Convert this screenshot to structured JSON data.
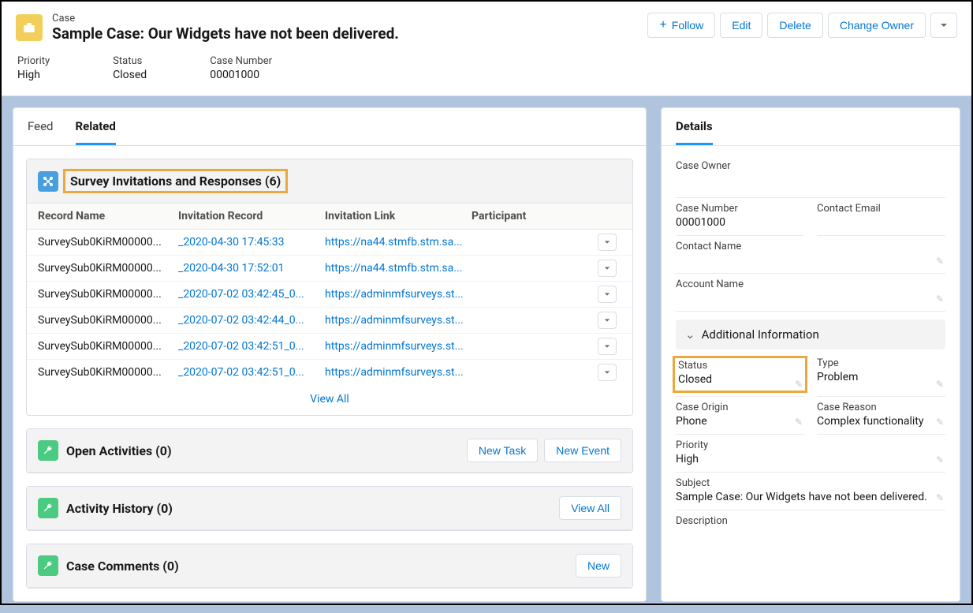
{
  "header": {
    "object_label": "Case",
    "title": "Sample Case: Our Widgets have not been delivered.",
    "actions": {
      "follow": "Follow",
      "edit": "Edit",
      "delete": "Delete",
      "change_owner": "Change Owner"
    },
    "highlights": [
      {
        "label": "Priority",
        "value": "High"
      },
      {
        "label": "Status",
        "value": "Closed"
      },
      {
        "label": "Case Number",
        "value": "00001000"
      }
    ]
  },
  "tabs": {
    "feed": "Feed",
    "related": "Related"
  },
  "survey_list": {
    "title": "Survey Invitations and Responses (6)",
    "columns": {
      "record": "Record Name",
      "invitation": "Invitation Record",
      "link": "Invitation Link",
      "participant": "Participant"
    },
    "rows": [
      {
        "record": "SurveySub0KiRM00000...",
        "invitation": "_2020-04-30 17:45:33",
        "link": "https://na44.stmfb.stm.sa..."
      },
      {
        "record": "SurveySub0KiRM00000...",
        "invitation": "_2020-04-30 17:52:01",
        "link": "https://na44.stmfb.stm.sa..."
      },
      {
        "record": "SurveySub0KiRM00000...",
        "invitation": "_2020-07-02 03:42:45_0...",
        "link": "https://adminmfsurveys.st..."
      },
      {
        "record": "SurveySub0KiRM00000...",
        "invitation": "_2020-07-02 03:42:44_0...",
        "link": "https://adminmfsurveys.st..."
      },
      {
        "record": "SurveySub0KiRM00000...",
        "invitation": "_2020-07-02 03:42:51_0...",
        "link": "https://adminmfsurveys.st..."
      },
      {
        "record": "SurveySub0KiRM00000...",
        "invitation": "_2020-07-02 03:42:51_0...",
        "link": "https://adminmfsurveys.st..."
      }
    ],
    "view_all": "View All"
  },
  "open_activities": {
    "title": "Open Activities (0)",
    "new_task": "New Task",
    "new_event": "New Event"
  },
  "activity_history": {
    "title": "Activity History (0)",
    "view_all": "View All"
  },
  "case_comments": {
    "title": "Case Comments (0)",
    "new": "New"
  },
  "details": {
    "tab": "Details",
    "case_owner_label": "Case Owner",
    "case_number_label": "Case Number",
    "case_number_value": "00001000",
    "contact_email_label": "Contact Email",
    "contact_name_label": "Contact Name",
    "account_name_label": "Account Name",
    "section": "Additional Information",
    "status_label": "Status",
    "status_value": "Closed",
    "type_label": "Type",
    "type_value": "Problem",
    "origin_label": "Case Origin",
    "origin_value": "Phone",
    "reason_label": "Case Reason",
    "reason_value": "Complex functionality",
    "priority_label": "Priority",
    "priority_value": "High",
    "subject_label": "Subject",
    "subject_value": "Sample Case: Our Widgets have not been delivered.",
    "description_label": "Description"
  },
  "colors": {
    "link": "#0176d3",
    "accent": "#1b96ff",
    "highlight_border": "#e9a93f",
    "case_icon_bg": "#f2cf5b",
    "green_icon_bg": "#4bca81",
    "blue_icon_bg": "#489fdf"
  }
}
